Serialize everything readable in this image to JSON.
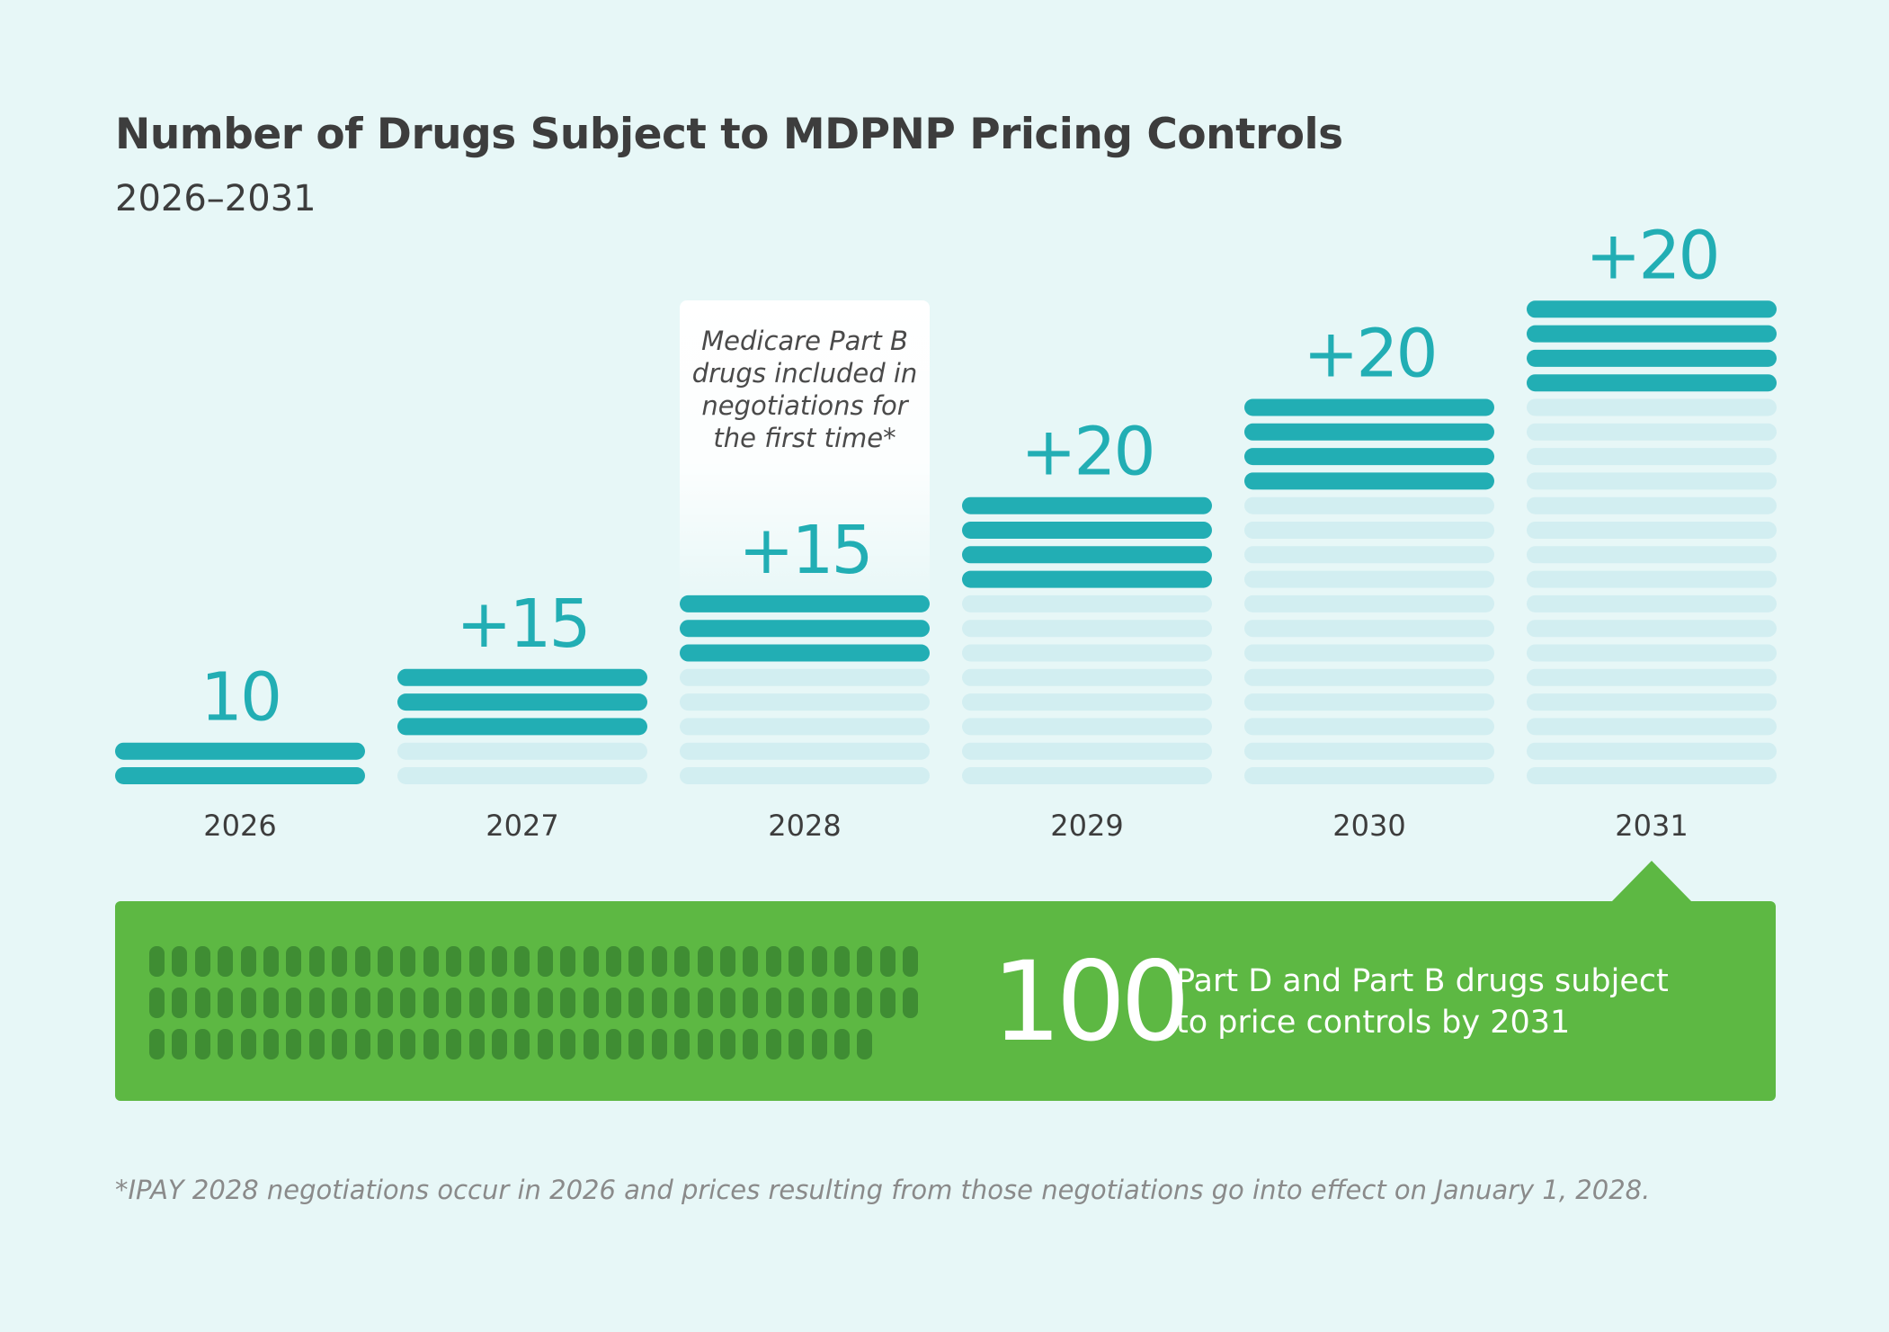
{
  "title": "Number of Drugs Subject to MDPNP Pricing Controls",
  "subtitle": "2026–2031",
  "chart_data": {
    "type": "bar",
    "categories": [
      "2026",
      "2027",
      "2028",
      "2029",
      "2030",
      "2031"
    ],
    "series": [
      {
        "values": [
          10,
          15,
          15,
          20,
          20,
          20
        ]
      }
    ],
    "cumulative": [
      10,
      25,
      40,
      60,
      80,
      100
    ],
    "value_labels": [
      "10",
      "+15",
      "+15",
      "+20",
      "+20",
      "+20"
    ],
    "units_per_stripe": 5,
    "annotation": {
      "category": "2028",
      "lines": [
        "Medicare Part B",
        "drugs included in",
        "negotiations for",
        "the first time*"
      ]
    },
    "colors": {
      "new": "#22aeb4",
      "previous": "#d2eef1",
      "label": "#22aeb4",
      "annotation_box": "#ffffff"
    }
  },
  "summary": {
    "total": "100",
    "caption_lines": [
      "Part D and Part B drugs subject",
      "to price controls by 2031"
    ],
    "pill_rows": [
      34,
      34,
      32
    ],
    "colors": {
      "panel": "#5db843",
      "pill": "#3f8d33"
    }
  },
  "footnote": "*IPAY 2028 negotiations occur in 2026 and prices resulting from those negotiations go into effect on January 1, 2028."
}
